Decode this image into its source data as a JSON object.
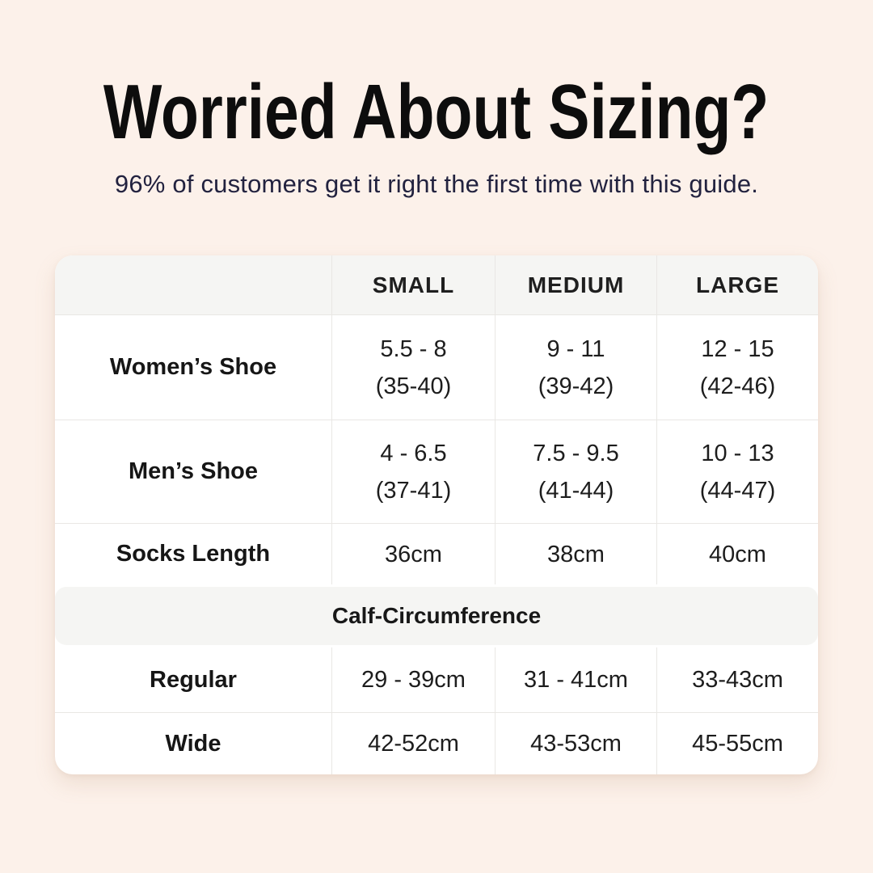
{
  "header": {
    "title": "Worried About Sizing?",
    "subtitle": "96% of customers get it right the first time with this guide."
  },
  "colors": {
    "background": "#fcf1ea",
    "card": "#ffffff",
    "band": "#f5f5f3",
    "title": "#0d0d0d",
    "subtitle": "#22223f",
    "text": "#1d1d1d",
    "border": "#e9e7e4"
  },
  "table": {
    "column_headers": [
      "",
      "SMALL",
      "MEDIUM",
      "LARGE"
    ],
    "rows": [
      {
        "label": "Women’s Shoe",
        "values": [
          [
            "5.5 - 8",
            "(35-40)"
          ],
          [
            "9 - 11",
            "(39-42)"
          ],
          [
            "12 - 15",
            "(42-46)"
          ]
        ]
      },
      {
        "label": "Men’s Shoe",
        "values": [
          [
            "4 - 6.5",
            "(37-41)"
          ],
          [
            "7.5 - 9.5",
            "(41-44)"
          ],
          [
            "10 - 13",
            "(44-47)"
          ]
        ]
      },
      {
        "label": "Socks Length",
        "values": [
          [
            "36cm"
          ],
          [
            "38cm"
          ],
          [
            "40cm"
          ]
        ]
      }
    ],
    "section_header": "Calf-Circumference",
    "section_rows": [
      {
        "label": "Regular",
        "values": [
          [
            "29 - 39cm"
          ],
          [
            "31 - 41cm"
          ],
          [
            "33-43cm"
          ]
        ]
      },
      {
        "label": "Wide",
        "values": [
          [
            "42-52cm"
          ],
          [
            "43-53cm"
          ],
          [
            "45-55cm"
          ]
        ]
      }
    ]
  },
  "chart_data": {
    "type": "table",
    "title": "Worried About Sizing?",
    "subtitle": "96% of customers get it right the first time with this guide.",
    "columns": [
      "",
      "SMALL",
      "MEDIUM",
      "LARGE"
    ],
    "rows": [
      [
        "Women’s Shoe",
        "5.5 - 8 (35-40)",
        "9 - 11 (39-42)",
        "12 - 15 (42-46)"
      ],
      [
        "Men’s Shoe",
        "4 - 6.5 (37-41)",
        "7.5 - 9.5 (41-44)",
        "10 - 13 (44-47)"
      ],
      [
        "Socks Length",
        "36cm",
        "38cm",
        "40cm"
      ],
      [
        "Calf-Circumference",
        "",
        "",
        ""
      ],
      [
        "Regular",
        "29 - 39cm",
        "31 - 41cm",
        "33-43cm"
      ],
      [
        "Wide",
        "42-52cm",
        "43-53cm",
        "45-55cm"
      ]
    ],
    "layout_hints": {
      "header_background": "#f5f5f3",
      "body_background": "#ffffff",
      "section_band_row": 3
    }
  }
}
